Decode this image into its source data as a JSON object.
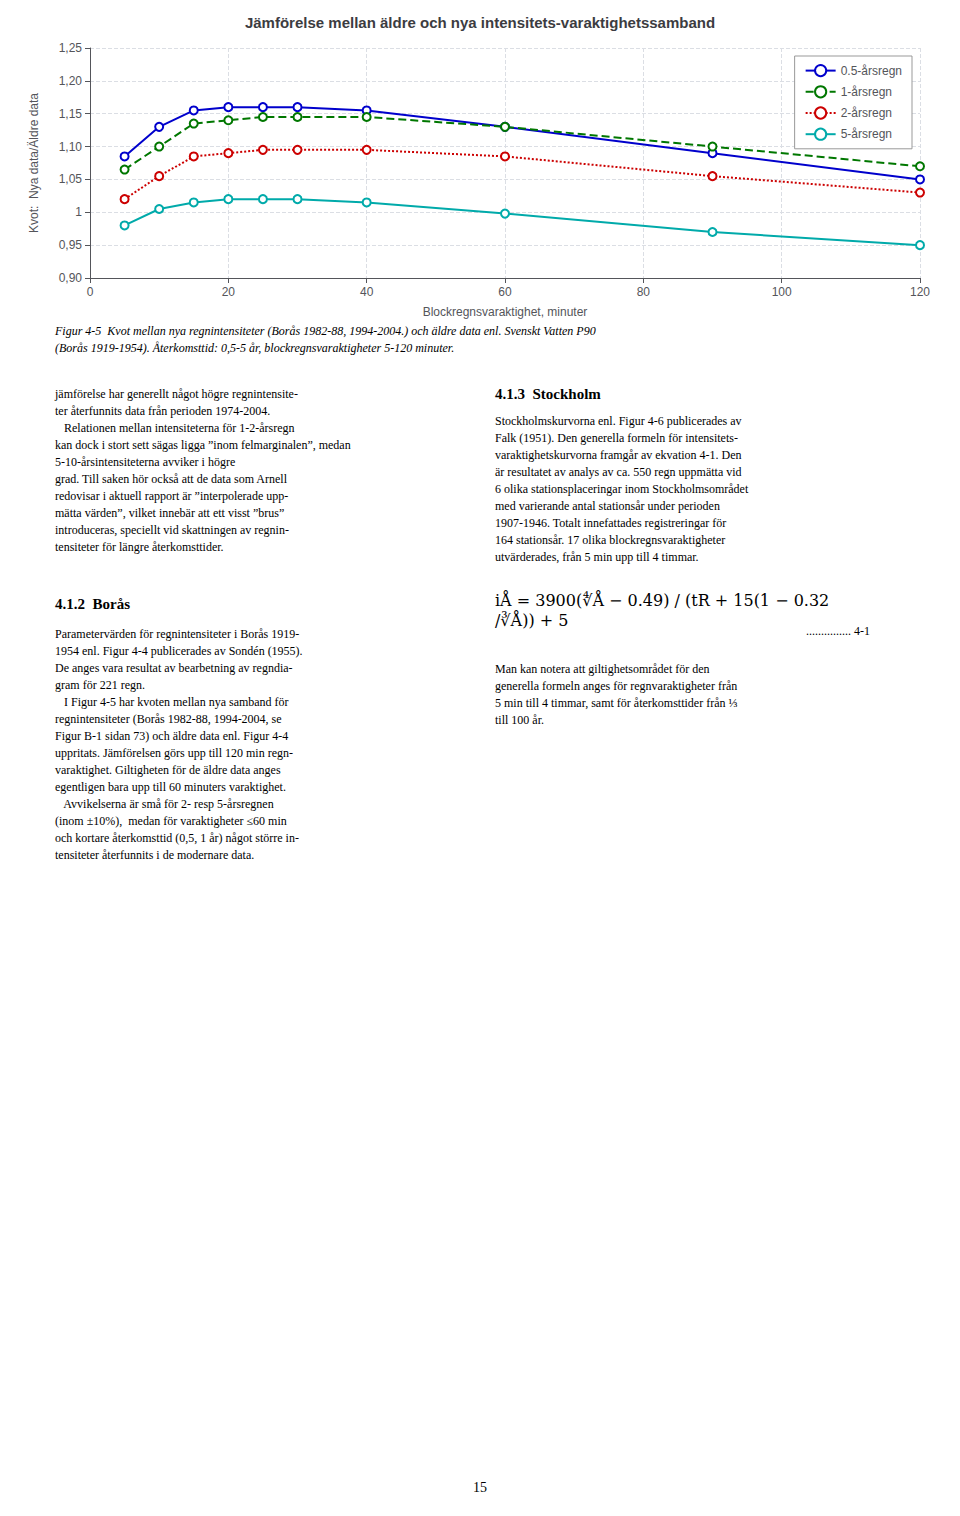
{
  "chart_data": {
    "type": "line",
    "title": "Jämförelse mellan äldre och nya intensitets-varaktighetssamband",
    "x_label": "Blockregnsvaraktighet, minuter",
    "y_label": "Kvot:  Nya data/Äldre data",
    "xlim": [
      0,
      120
    ],
    "ylim": [
      0.9,
      1.25
    ],
    "xticks": [
      0,
      20,
      40,
      60,
      80,
      100,
      120
    ],
    "yticks": [
      {
        "value": 0.9,
        "label": "0,90"
      },
      {
        "value": 0.95,
        "label": "0,95"
      },
      1,
      {
        "value": 1.05,
        "label": "1,05"
      },
      {
        "value": 1.1,
        "label": "1,10"
      },
      {
        "value": 1.15,
        "label": "1,15"
      },
      {
        "value": 1.2,
        "label": "1,20"
      },
      {
        "value": 1.25,
        "label": "1,25"
      }
    ],
    "grid": true,
    "legend": "upper right",
    "x": [
      5,
      10,
      15,
      20,
      25,
      30,
      40,
      60,
      90,
      120
    ],
    "series": [
      {
        "name": "0.5-årsregn",
        "color": "#0000CC",
        "line_style": "solid",
        "marker": "circle",
        "values": [
          1.085,
          1.13,
          1.155,
          1.16,
          1.16,
          1.16,
          1.155,
          1.13,
          1.09,
          1.05
        ]
      },
      {
        "name": "1-årsregn",
        "color": "#007700",
        "line_style": "dashed",
        "marker": "circle",
        "values": [
          1.065,
          1.1,
          1.135,
          1.14,
          1.145,
          1.145,
          1.145,
          1.13,
          1.1,
          1.07
        ]
      },
      {
        "name": "2-årsregn",
        "color": "#CC0000",
        "line_style": "dotted",
        "marker": "circle",
        "values": [
          1.02,
          1.055,
          1.085,
          1.09,
          1.095,
          1.095,
          1.095,
          1.085,
          1.055,
          1.03
        ]
      },
      {
        "name": "5-årsregn",
        "color": "#00AAAA",
        "line_style": "solid",
        "marker": "circle",
        "values": [
          0.98,
          1.005,
          1.015,
          1.02,
          1.02,
          1.02,
          1.015,
          0.998,
          0.97,
          0.95
        ]
      }
    ],
    "annotations": [
      "Figur 4-5  Kvot mellan nya regnintensiteter (Borås 1982-88, 1994-2004.) och äldre data enl. Svenskt Vatten P90\n(Borås 1919-1954). Återkomsttid: 0,5-5 år, blockregnsvaraktigheter 5-120 minuter.",
      "jämförelse har generellt något högre regnintensite-\nter återfunnits data från perioden 1974-2004.\n   Relationen mellan intensiteterna för 1-2-årsregn\nkan dock i stort sett sägas ligga ”inom felmarginalen”, medan 5-10-årsintensiteterna avviker i högre\ngrad. Till saken hör också att de data som Arnell\nredovisar i aktuell rapport är ”interpolerade upp-\nmätta värden”, vilket innebär att ett visst ”brus”\nintroduceras, speciellt vid skattningen av regnin-\ntensiteter för längre återkomsttider.",
      "4.1.2  Borås",
      "Parametervärden för regnintensiteter i Borås 1919-\n1954 enl. Figur 4-4 publicerades av Sondén (1955).\nDe anges vara resultat av bearbetning av regndia-\ngram för 221 regn.\n   I Figur 4-5 har kvoten mellan nya samband för\nregnintensiteter (Borås 1982-88, 1994-2004, se\nFigur B-1 sidan 73) och äldre data enl. Figur 4-4\nuppritats. Jämförelsen görs upp till 120 min regn-\nvaraktighet. Giltigheten för de äldre data anges\negentligen bara upp till 60 minuters varaktighet.\n   Avvikelserna är små för 2- resp 5-årsregnen\n(inom ±10%),  medan för varaktigheter ≤60 min\noch kortare återkomsttid (0,5, 1 år) något större in-\ntensiteter återfunnits i de modernare data.",
      "4.1.3  Stockholm",
      "Stockholmskurvorna enl. Figur 4-6 publicerades av\nFalk (1951). Den generella formeln för intensitets-\nvaraktighetskurvorna framgår av ekvation 4-1. Den\när resultatet av analys av ca. 550 regn uppmätta vid\n6 olika stationsplaceringar inom Stockholmsområdet\nmed varierande antal stationsår under perioden\n1907-1946. Totalt innefattades registreringar för\n164 stationsår. 17 olika blockregnsvaraktigheter\nutvärderades, från 5 min upp till 4 timmar.",
      "iÅ = 3900(∜Å − 0.49) / (tR + 15(1 − 0.32/∛Å)) + 5",
      "............... 4-1",
      "Man kan notera att giltighetsområdet för den\ngenerella formeln anges för regnvaraktigheter från\n5 min till 4 timmar, samt för återkomsttider från ⅓\ntill 100 år.",
      "15"
    ]
  }
}
